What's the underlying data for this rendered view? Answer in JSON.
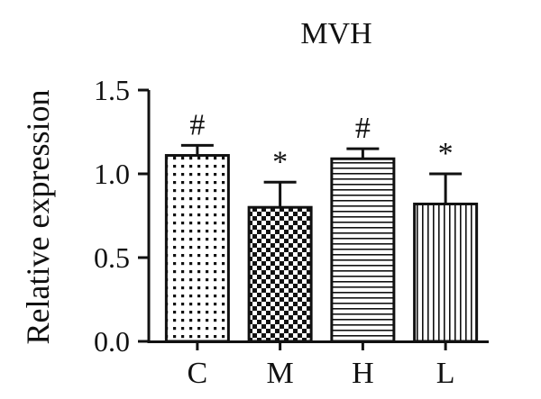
{
  "chart_data": {
    "type": "bar",
    "title": "MVH",
    "xlabel": "",
    "ylabel": "Relative expression",
    "ylim": [
      0,
      1.5
    ],
    "yticks": [
      "0.0",
      "0.5",
      "1.0",
      "1.5"
    ],
    "categories": [
      "C",
      "M",
      "H",
      "L"
    ],
    "values": [
      1.11,
      0.8,
      1.09,
      0.82
    ],
    "errors": [
      0.06,
      0.15,
      0.06,
      0.18
    ],
    "annotations": [
      "#",
      "*",
      "#",
      "*"
    ],
    "patterns": [
      "dots",
      "checkerboard",
      "horizontal-lines",
      "vertical-lines"
    ],
    "grid": false,
    "colors": {
      "bar_stroke": "#111111",
      "background": "#ffffff"
    }
  }
}
